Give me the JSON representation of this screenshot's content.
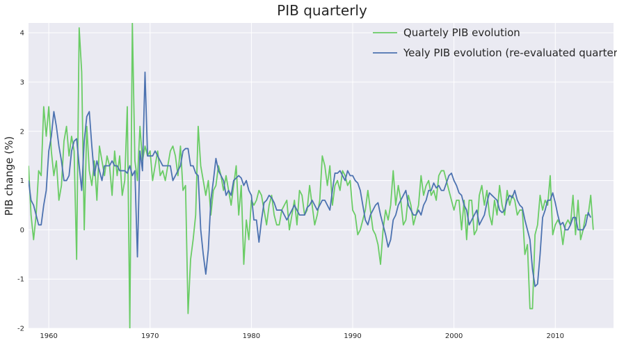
{
  "chart_data": {
    "type": "line",
    "title": "PIB quarterly",
    "xlabel": "",
    "ylabel": "PIB change (%)",
    "xlim": [
      1958.0,
      2015.75
    ],
    "ylim": [
      -2,
      4.2
    ],
    "x_ticks": [
      1960,
      1970,
      1980,
      1990,
      2000,
      2010
    ],
    "y_ticks": [
      -2,
      -1,
      0,
      1,
      2,
      3,
      4
    ],
    "grid": true,
    "legend_position": "top-right",
    "x_start": 1958.0,
    "x_step": 0.25,
    "series": [
      {
        "name": "Quartely PIB evolution",
        "color": "#6ACC65",
        "values": [
          1.3,
          0.3,
          -0.2,
          0.3,
          1.2,
          1.1,
          2.5,
          1.9,
          2.5,
          1.6,
          1.1,
          1.4,
          0.6,
          0.9,
          1.8,
          2.1,
          1.5,
          1.9,
          1.6,
          -0.6,
          4.1,
          3.2,
          0.0,
          2.1,
          1.2,
          0.9,
          1.4,
          0.6,
          1.7,
          1.4,
          1.1,
          1.5,
          1.3,
          0.7,
          1.6,
          1.1,
          1.5,
          0.7,
          1.0,
          2.5,
          -2.0,
          4.2,
          1.4,
          1.0,
          2.1,
          1.4,
          1.7,
          1.5,
          1.6,
          1.0,
          1.3,
          1.6,
          1.1,
          1.2,
          1.0,
          1.3,
          1.6,
          1.7,
          1.5,
          1.1,
          1.7,
          0.8,
          0.9,
          -1.7,
          -0.6,
          -0.2,
          0.3,
          2.1,
          1.3,
          1.0,
          0.7,
          1.0,
          0.3,
          0.8,
          0.9,
          1.3,
          1.1,
          0.8,
          1.1,
          0.8,
          0.5,
          0.9,
          1.3,
          0.3,
          0.9,
          -0.7,
          0.2,
          -0.2,
          0.6,
          0.5,
          0.6,
          0.8,
          0.7,
          0.4,
          0.1,
          0.5,
          0.7,
          0.3,
          0.1,
          0.1,
          0.4,
          0.5,
          0.6,
          0.0,
          0.3,
          0.6,
          0.1,
          0.8,
          0.7,
          0.3,
          0.4,
          0.9,
          0.5,
          0.1,
          0.3,
          0.6,
          1.5,
          1.3,
          0.9,
          1.3,
          0.5,
          0.9,
          1.0,
          0.8,
          1.2,
          1.1,
          0.9,
          1.0,
          0.4,
          0.3,
          -0.1,
          0.0,
          0.2,
          0.4,
          0.8,
          0.4,
          0.0,
          -0.1,
          -0.3,
          -0.7,
          0.0,
          0.4,
          0.2,
          0.5,
          1.2,
          0.5,
          0.9,
          0.6,
          0.1,
          0.2,
          0.7,
          0.5,
          0.1,
          0.3,
          0.5,
          1.1,
          0.7,
          0.9,
          1.0,
          0.7,
          0.8,
          0.6,
          1.1,
          1.2,
          1.2,
          1.0,
          0.8,
          0.6,
          0.4,
          0.6,
          0.6,
          0.0,
          0.6,
          -0.2,
          0.6,
          0.6,
          -0.1,
          0.0,
          0.7,
          0.9,
          0.5,
          0.8,
          0.3,
          0.1,
          0.6,
          0.3,
          0.9,
          0.5,
          0.3,
          0.8,
          0.5,
          0.7,
          0.6,
          0.3,
          0.4,
          0.4,
          -0.5,
          -0.3,
          -1.6,
          -1.6,
          -0.1,
          0.1,
          0.7,
          0.4,
          0.6,
          0.5,
          1.1,
          -0.1,
          0.1,
          0.2,
          0.1,
          -0.3,
          0.1,
          0.2,
          0.1,
          0.7,
          -0.1,
          0.6,
          -0.2,
          0.0,
          0.3,
          0.3,
          0.7,
          0.0
        ]
      },
      {
        "name": "Yealy PIB evolution (re-evaluated quarterly)",
        "color": "#4C72B0",
        "values": [
          1.0,
          0.6,
          0.5,
          0.3,
          0.1,
          0.1,
          0.5,
          0.8,
          1.6,
          1.9,
          2.4,
          2.1,
          1.7,
          1.4,
          1.0,
          1.0,
          1.1,
          1.6,
          1.8,
          1.85,
          1.3,
          0.8,
          1.8,
          2.3,
          2.4,
          1.7,
          1.1,
          1.4,
          1.2,
          1.0,
          1.3,
          1.3,
          1.3,
          1.4,
          1.3,
          1.3,
          1.2,
          1.2,
          1.2,
          1.15,
          1.3,
          1.1,
          1.2,
          -0.55,
          1.6,
          1.2,
          3.2,
          1.5,
          1.5,
          1.5,
          1.6,
          1.5,
          1.4,
          1.3,
          1.3,
          1.3,
          1.3,
          1.0,
          1.1,
          1.2,
          1.3,
          1.6,
          1.65,
          1.65,
          1.3,
          1.3,
          1.15,
          1.1,
          0.0,
          -0.5,
          -0.9,
          -0.4,
          0.6,
          1.0,
          1.45,
          1.2,
          1.1,
          1.0,
          0.7,
          0.8,
          0.7,
          1.0,
          1.05,
          1.1,
          1.05,
          0.9,
          1.0,
          0.8,
          0.7,
          0.2,
          0.2,
          -0.25,
          0.2,
          0.55,
          0.6,
          0.7,
          0.65,
          0.55,
          0.4,
          0.4,
          0.4,
          0.3,
          0.2,
          0.3,
          0.4,
          0.5,
          0.4,
          0.3,
          0.3,
          0.3,
          0.45,
          0.5,
          0.6,
          0.5,
          0.4,
          0.5,
          0.6,
          0.6,
          0.5,
          0.4,
          0.8,
          1.15,
          1.15,
          1.2,
          1.1,
          1.0,
          1.2,
          1.1,
          1.1,
          1.0,
          0.95,
          0.8,
          0.5,
          0.2,
          0.1,
          0.3,
          0.4,
          0.5,
          0.55,
          0.3,
          0.1,
          -0.1,
          -0.35,
          -0.2,
          0.2,
          0.3,
          0.5,
          0.6,
          0.7,
          0.8,
          0.5,
          0.4,
          0.3,
          0.3,
          0.4,
          0.3,
          0.5,
          0.6,
          0.8,
          0.8,
          0.95,
          0.85,
          0.9,
          0.8,
          0.8,
          0.95,
          1.1,
          1.15,
          1.0,
          0.9,
          0.75,
          0.7,
          0.5,
          0.4,
          0.1,
          0.2,
          0.3,
          0.4,
          0.1,
          0.2,
          0.3,
          0.55,
          0.75,
          0.7,
          0.65,
          0.6,
          0.4,
          0.35,
          0.4,
          0.6,
          0.7,
          0.65,
          0.8,
          0.6,
          0.5,
          0.45,
          0.2,
          0.0,
          -0.2,
          -0.8,
          -1.15,
          -1.1,
          -0.5,
          0.25,
          0.4,
          0.6,
          0.6,
          0.75,
          0.55,
          0.3,
          0.1,
          0.15,
          0.0,
          0.0,
          0.1,
          0.25,
          0.25,
          0.0,
          0.0,
          0.0,
          0.1,
          0.35,
          0.25
        ]
      }
    ]
  }
}
